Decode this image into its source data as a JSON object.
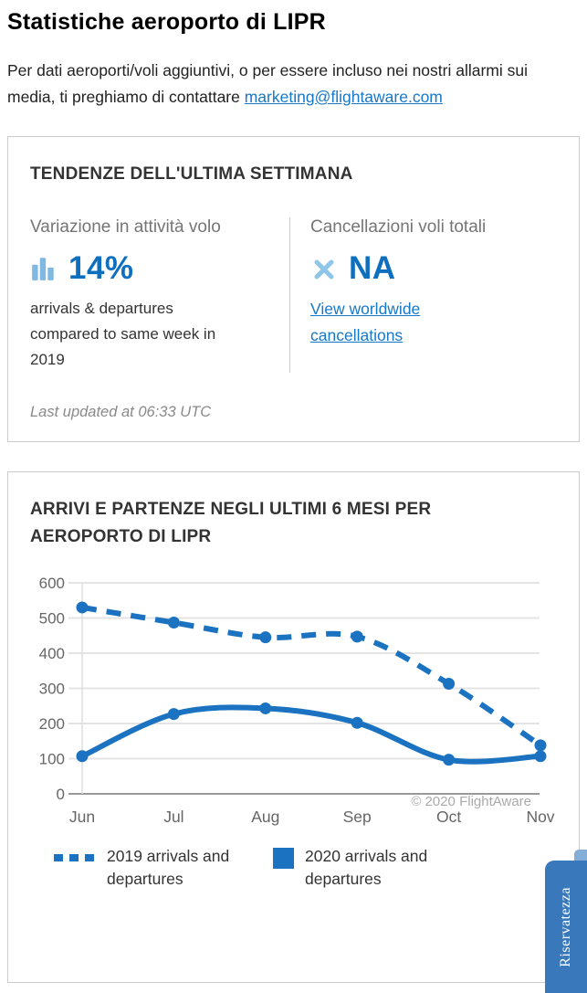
{
  "page": {
    "title": "Statistiche aeroporto di LIPR",
    "intro_text": "Per dati aeroporti/voli aggiuntivi, o per essere incluso nei nostri allarmi sui media, ti preghiamo di contattare ",
    "intro_link_text": "marketing@flightaware.com"
  },
  "trends_card": {
    "heading": "TENDENZE DELL'ULTIMA SETTIMANA",
    "flight_activity": {
      "label": "Variazione in attività volo",
      "icon": "bar-chart-icon",
      "value": "14%",
      "description": "arrivals & departures compared to same week in 2019"
    },
    "cancellations": {
      "label": "Cancellazioni voli totali",
      "icon": "x-icon",
      "value": "NA",
      "link_text": "View worldwide cancellations"
    },
    "last_updated": "Last updated at 06:33 UTC"
  },
  "chart_card": {
    "heading": "ARRIVI E PARTENZE NEGLI ULTIMI 6 MESI PER AEROPORTO DI LIPR",
    "legend": [
      {
        "label": "2019 arrivals and departures",
        "swatch": "dashed-line"
      },
      {
        "label": "2020 arrivals and departures",
        "swatch": "solid-square"
      }
    ]
  },
  "chart_data": {
    "type": "line",
    "title": "ARRIVI E PARTENZE NEGLI ULTIMI 6 MESI PER AEROPORTO DI LIPR",
    "categories": [
      "Jun",
      "Jul",
      "Aug",
      "Sep",
      "Oct",
      "Nov"
    ],
    "series": [
      {
        "name": "2019 arrivals and departures",
        "line_style": "dashed",
        "values": [
          530,
          487,
          445,
          447,
          313,
          138
        ]
      },
      {
        "name": "2020 arrivals and departures",
        "line_style": "solid",
        "values": [
          107,
          227,
          243,
          202,
          97,
          107
        ]
      }
    ],
    "ylim": [
      0,
      600
    ],
    "ytick_interval": 100,
    "grid": true,
    "legend_position": "bottom",
    "watermark": "© 2020 FlightAware",
    "line_color": "#1a72c0",
    "grid_color": "#e4e4e4",
    "axis_color": "#999999",
    "axis_label_color": "#666666",
    "watermark_color": "#aaaaaa"
  },
  "privacy_tab": {
    "label": "Riservatezza"
  },
  "colors": {
    "accent_blue": "#0e6fbe",
    "light_blue": "#8ec6e8",
    "icon_bar_blue": "#7fb9e2",
    "link_blue": "#1878c8",
    "card_border": "#cccccc",
    "label_gray": "#757575"
  }
}
